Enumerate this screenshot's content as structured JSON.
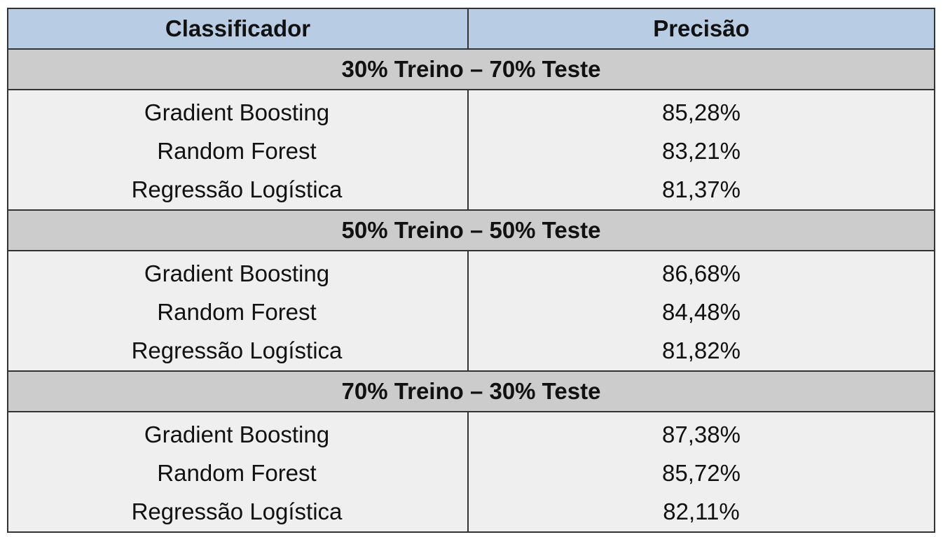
{
  "table": {
    "headers": {
      "classifier": "Classificador",
      "precision": "Precisão"
    },
    "groups": [
      {
        "label": "30% Treino – 70% Teste",
        "rows": [
          {
            "classifier": "Gradient Boosting",
            "precision": "85,28%"
          },
          {
            "classifier": "Random Forest",
            "precision": "83,21%"
          },
          {
            "classifier": "Regressão Logística",
            "precision": "81,37%"
          }
        ]
      },
      {
        "label": "50% Treino – 50% Teste",
        "rows": [
          {
            "classifier": "Gradient Boosting",
            "precision": "86,68%"
          },
          {
            "classifier": "Random Forest",
            "precision": "84,48%"
          },
          {
            "classifier": "Regressão Logística",
            "precision": "81,82%"
          }
        ]
      },
      {
        "label": "70% Treino – 30% Teste",
        "rows": [
          {
            "classifier": "Gradient Boosting",
            "precision": "87,38%"
          },
          {
            "classifier": "Random Forest",
            "precision": "85,72%"
          },
          {
            "classifier": "Regressão Logística",
            "precision": "82,11%"
          }
        ]
      }
    ],
    "colors": {
      "header_bg": "#b8cce4",
      "group_bg": "#cccccc",
      "body_bg": "#efefef",
      "border": "#333333"
    }
  }
}
